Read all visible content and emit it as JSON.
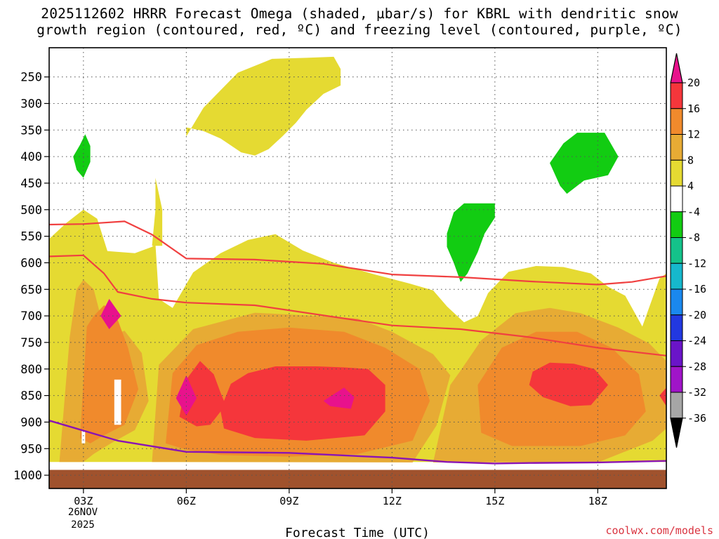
{
  "chart_data": {
    "type": "heatmap",
    "title_line1": "2025112602 HRRR Forecast Omega (shaded, µbar/s) for KBRL with dendritic snow",
    "title_line2": "growth region (contoured, red, ºC) and freezing level (contoured, purple, ºC)",
    "xlabel": "Forecast Time (UTC)",
    "ylabel": "",
    "x_ticks": [
      "03Z",
      "06Z",
      "09Z",
      "12Z",
      "15Z",
      "18Z"
    ],
    "x_tick_hours": [
      3,
      6,
      9,
      12,
      15,
      18
    ],
    "x_range_hours": [
      2,
      20
    ],
    "date_line1": "26NOV",
    "date_line2": "2025",
    "y_ticks": [
      "250",
      "300",
      "350",
      "400",
      "450",
      "500",
      "550",
      "600",
      "650",
      "700",
      "750",
      "800",
      "850",
      "900",
      "950",
      "1000"
    ],
    "y_tick_values": [
      250,
      300,
      350,
      400,
      450,
      500,
      550,
      600,
      650,
      700,
      750,
      800,
      850,
      900,
      950,
      1000
    ],
    "y_range_hpa": [
      195,
      1025
    ],
    "surface_top_hpa": 990,
    "colorbar": {
      "labels": [
        "20",
        "16",
        "12",
        "8",
        "4",
        "-4",
        "-8",
        "-12",
        "-16",
        "-20",
        "-24",
        "-28",
        "-32",
        "-36"
      ],
      "bins": [
        {
          "range": "above 20",
          "color": "#e8128c"
        },
        {
          "range": "16 to 20",
          "color": "#f5363b"
        },
        {
          "range": "12 to 16",
          "color": "#f08a2c"
        },
        {
          "range": "8 to 12",
          "color": "#e7ab34"
        },
        {
          "range": "4 to 8",
          "color": "#e5da32"
        },
        {
          "range": "-4 to 4",
          "color": "#ffffff"
        },
        {
          "range": "-8 to -4",
          "color": "#12cc12"
        },
        {
          "range": "-12 to -8",
          "color": "#14c28a"
        },
        {
          "range": "-16 to -12",
          "color": "#16b8cc"
        },
        {
          "range": "-20 to -16",
          "color": "#1a88ee"
        },
        {
          "range": "-24 to -20",
          "color": "#2238e0"
        },
        {
          "range": "-28 to -24",
          "color": "#6a14c8"
        },
        {
          "range": "-32 to -28",
          "color": "#a014c8"
        },
        {
          "range": "-36 to -32",
          "color": "#a6a6a6"
        },
        {
          "range": "below -36",
          "color": "#000000"
        }
      ]
    },
    "colors": {
      "surface": "#a0522d",
      "dgz_contour": "#f04040",
      "freezing_contour": "#8a14b4"
    },
    "dendritic_growth_contours": [
      {
        "name": "upper",
        "points": [
          [
            2,
            528
          ],
          [
            3,
            527
          ],
          [
            4.2,
            522
          ],
          [
            5,
            547
          ],
          [
            6,
            592
          ],
          [
            8,
            594
          ],
          [
            10,
            602
          ],
          [
            12,
            622
          ],
          [
            14,
            627
          ],
          [
            16,
            635
          ],
          [
            18,
            641
          ],
          [
            19,
            636
          ],
          [
            20,
            625
          ]
        ]
      },
      {
        "name": "lower",
        "points": [
          [
            2,
            588
          ],
          [
            3,
            586
          ],
          [
            3.6,
            620
          ],
          [
            4,
            655
          ],
          [
            5,
            668
          ],
          [
            6,
            675
          ],
          [
            8,
            680
          ],
          [
            12,
            718
          ],
          [
            14,
            725
          ],
          [
            16,
            740
          ],
          [
            18,
            760
          ],
          [
            20,
            775
          ]
        ]
      }
    ],
    "freezing_level_contour": [
      [
        2,
        897
      ],
      [
        4,
        935
      ],
      [
        6,
        956
      ],
      [
        9,
        958
      ],
      [
        12,
        967
      ],
      [
        13.6,
        975
      ],
      [
        15,
        978
      ],
      [
        16,
        977
      ],
      [
        18,
        976
      ],
      [
        20,
        973
      ]
    ],
    "omega_regions": [
      {
        "bin": "4 to 8",
        "points": [
          [
            2,
            975
          ],
          [
            2,
            555
          ],
          [
            2.5,
            525
          ],
          [
            3,
            500
          ],
          [
            3.4,
            517
          ],
          [
            3.7,
            578
          ],
          [
            4.5,
            582
          ],
          [
            5,
            570
          ],
          [
            5.1,
            565
          ],
          [
            5.2,
            668
          ],
          [
            5.6,
            685
          ],
          [
            6.2,
            618
          ],
          [
            7,
            582
          ],
          [
            7.8,
            557
          ],
          [
            8.6,
            546
          ],
          [
            9.4,
            577
          ],
          [
            10.3,
            600
          ],
          [
            11.5,
            622
          ],
          [
            12.5,
            639
          ],
          [
            13.2,
            652
          ],
          [
            13.6,
            682
          ],
          [
            14.1,
            712
          ],
          [
            14.5,
            700
          ],
          [
            14.8,
            657
          ],
          [
            15.4,
            617
          ],
          [
            16.2,
            606
          ],
          [
            17,
            608
          ],
          [
            17.8,
            620
          ],
          [
            18.3,
            645
          ],
          [
            18.8,
            662
          ],
          [
            19.3,
            720
          ],
          [
            19.8,
            630
          ],
          [
            20,
            620
          ],
          [
            20,
            975
          ]
        ]
      },
      {
        "bin": "4 to 8",
        "points": [
          [
            6.0,
            362
          ],
          [
            6.5,
            308
          ],
          [
            7.5,
            242
          ],
          [
            8.5,
            216
          ],
          [
            9.5,
            214
          ],
          [
            10.3,
            212
          ],
          [
            10.5,
            235
          ],
          [
            10.5,
            266
          ],
          [
            10.0,
            282
          ],
          [
            9.5,
            312
          ],
          [
            9.2,
            336
          ],
          [
            8.8,
            362
          ],
          [
            8.4,
            386
          ],
          [
            8.0,
            398
          ],
          [
            7.6,
            392
          ],
          [
            7.0,
            366
          ],
          [
            6.5,
            352
          ],
          [
            6.0,
            345
          ]
        ]
      },
      {
        "bin": "4 to 8",
        "points": [
          [
            5.0,
            568
          ],
          [
            5.1,
            500
          ],
          [
            5.1,
            440
          ],
          [
            5.3,
            500
          ],
          [
            5.3,
            568
          ]
        ]
      },
      {
        "bin": "8 to 12",
        "points": [
          [
            2.3,
            975
          ],
          [
            2.6,
            740
          ],
          [
            2.8,
            650
          ],
          [
            3,
            632
          ],
          [
            3.3,
            650
          ],
          [
            3.5,
            700
          ],
          [
            3.8,
            738
          ],
          [
            4.2,
            728
          ],
          [
            4.7,
            770
          ],
          [
            4.9,
            860
          ],
          [
            4.5,
            915
          ],
          [
            3.8,
            940
          ],
          [
            3.3,
            960
          ],
          [
            3,
            975
          ]
        ]
      },
      {
        "bin": "8 to 12",
        "points": [
          [
            5.0,
            975
          ],
          [
            5.2,
            792
          ],
          [
            6.2,
            725
          ],
          [
            8.0,
            694
          ],
          [
            9.8,
            700
          ],
          [
            11.0,
            705
          ],
          [
            12.0,
            730
          ],
          [
            13.2,
            772
          ],
          [
            13.7,
            812
          ],
          [
            13.3,
            906
          ],
          [
            12.6,
            976
          ]
        ]
      },
      {
        "bin": "8 to 12",
        "points": [
          [
            13.2,
            976
          ],
          [
            13.7,
            830
          ],
          [
            14.0,
            803
          ],
          [
            14.6,
            746
          ],
          [
            15.6,
            695
          ],
          [
            16.6,
            685
          ],
          [
            17.5,
            695
          ],
          [
            18.6,
            722
          ],
          [
            19.5,
            752
          ],
          [
            20,
            785
          ],
          [
            20,
            912
          ],
          [
            19.6,
            935
          ],
          [
            18,
            976
          ],
          [
            15.5,
            976
          ]
        ]
      },
      {
        "bin": "12 to 16",
        "points": [
          [
            2.9,
            930
          ],
          [
            3.1,
            720
          ],
          [
            3.3,
            700
          ],
          [
            3.6,
            680
          ],
          [
            3.9,
            690
          ],
          [
            4.3,
            760
          ],
          [
            4.6,
            838
          ],
          [
            4.2,
            905
          ],
          [
            3.6,
            925
          ],
          [
            3.2,
            940
          ]
        ]
      },
      {
        "bin": "12 to 16",
        "points": [
          [
            5.4,
            940
          ],
          [
            5.6,
            808
          ],
          [
            6.3,
            755
          ],
          [
            7.5,
            730
          ],
          [
            9,
            722
          ],
          [
            10.6,
            730
          ],
          [
            11.8,
            760
          ],
          [
            12.8,
            800
          ],
          [
            13.1,
            860
          ],
          [
            12.6,
            935
          ],
          [
            11,
            960
          ],
          [
            9,
            965
          ],
          [
            7,
            962
          ],
          [
            6,
            952
          ]
        ]
      },
      {
        "bin": "12 to 16",
        "points": [
          [
            14.6,
            920
          ],
          [
            14.5,
            830
          ],
          [
            15.2,
            760
          ],
          [
            16.2,
            730
          ],
          [
            17.4,
            730
          ],
          [
            18.4,
            760
          ],
          [
            19.2,
            810
          ],
          [
            19.4,
            880
          ],
          [
            18.8,
            925
          ],
          [
            17.5,
            945
          ],
          [
            15.5,
            945
          ]
        ]
      },
      {
        "bin": "16 to 20",
        "points": [
          [
            5.8,
            890
          ],
          [
            6,
            820
          ],
          [
            6.4,
            785
          ],
          [
            6.8,
            810
          ],
          [
            7,
            845
          ],
          [
            7.1,
            860
          ],
          [
            7.3,
            828
          ],
          [
            7.8,
            808
          ],
          [
            8.6,
            795
          ],
          [
            9.8,
            795
          ],
          [
            10.6,
            797
          ],
          [
            11.3,
            800
          ],
          [
            11.8,
            830
          ],
          [
            11.8,
            880
          ],
          [
            11.2,
            925
          ],
          [
            9.5,
            935
          ],
          [
            8,
            930
          ],
          [
            7.1,
            912
          ],
          [
            7,
            880
          ],
          [
            6.7,
            905
          ],
          [
            6.3,
            908
          ]
        ]
      },
      {
        "bin": "16 to 20",
        "points": [
          [
            16.0,
            830
          ],
          [
            16.1,
            805
          ],
          [
            16.6,
            788
          ],
          [
            17.3,
            790
          ],
          [
            17.9,
            800
          ],
          [
            18.3,
            830
          ],
          [
            17.8,
            868
          ],
          [
            17.2,
            870
          ],
          [
            16.4,
            853
          ]
        ]
      },
      {
        "bin": "16 to 20",
        "points": [
          [
            20,
            835
          ],
          [
            19.8,
            850
          ],
          [
            20,
            870
          ]
        ]
      },
      {
        "bin": "above 20",
        "points": [
          [
            3.5,
            700
          ],
          [
            3.75,
            668
          ],
          [
            4.1,
            700
          ],
          [
            3.75,
            725
          ]
        ]
      },
      {
        "bin": "above 20",
        "points": [
          [
            5.7,
            855
          ],
          [
            6.0,
            812
          ],
          [
            6.3,
            855
          ],
          [
            6.0,
            888
          ]
        ]
      },
      {
        "bin": "above 20",
        "points": [
          [
            10.0,
            860
          ],
          [
            10.6,
            835
          ],
          [
            10.9,
            853
          ],
          [
            10.8,
            875
          ],
          [
            10.2,
            870
          ]
        ]
      },
      {
        "bin": "-8 to -4",
        "points": [
          [
            2.7,
            400
          ],
          [
            2.9,
            378
          ],
          [
            3.05,
            358
          ],
          [
            3.2,
            380
          ],
          [
            3.2,
            410
          ],
          [
            3.0,
            440
          ],
          [
            2.8,
            425
          ]
        ]
      },
      {
        "bin": "-8 to -4",
        "points": [
          [
            13.6,
            545
          ],
          [
            13.8,
            505
          ],
          [
            14.1,
            488
          ],
          [
            15,
            488
          ],
          [
            15,
            515
          ],
          [
            14.7,
            545
          ],
          [
            14.5,
            580
          ],
          [
            14.2,
            620
          ],
          [
            14.0,
            636
          ],
          [
            13.8,
            600
          ],
          [
            13.6,
            570
          ]
        ]
      },
      {
        "bin": "-8 to -4",
        "points": [
          [
            16.6,
            412
          ],
          [
            17,
            375
          ],
          [
            17.4,
            355
          ],
          [
            18.2,
            355
          ],
          [
            18.6,
            400
          ],
          [
            18.3,
            435
          ],
          [
            17.6,
            445
          ],
          [
            17.1,
            470
          ],
          [
            16.9,
            455
          ]
        ]
      }
    ],
    "white_gaps": [
      {
        "points": [
          [
            3.9,
            820
          ],
          [
            4.1,
            820
          ],
          [
            4.1,
            905
          ],
          [
            3.9,
            905
          ]
        ]
      },
      {
        "points": [
          [
            2.95,
            915
          ],
          [
            3.05,
            915
          ],
          [
            3.05,
            940
          ],
          [
            2.95,
            940
          ]
        ]
      }
    ]
  },
  "credit": "coolwx.com/models"
}
